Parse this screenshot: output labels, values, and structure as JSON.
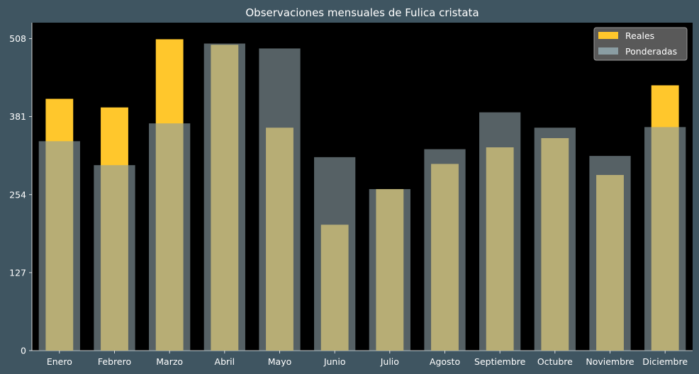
{
  "chart_data": {
    "type": "bar",
    "title": "Observaciones mensuales de Fulica cristata",
    "xlabel": "",
    "ylabel": "",
    "categories": [
      "Enero",
      "Febrero",
      "Marzo",
      "Abril",
      "Mayo",
      "Junio",
      "Julio",
      "Agosto",
      "Septiembre",
      "Octubre",
      "Noviembre",
      "Diciembre"
    ],
    "series": [
      {
        "name": "Reales",
        "color": "#ffc72c",
        "values": [
          410,
          396,
          507,
          498,
          363,
          205,
          263,
          304,
          331,
          346,
          286,
          432
        ]
      },
      {
        "name": "Ponderadas",
        "color": "#8a9da3",
        "values": [
          341,
          302,
          370,
          500,
          492,
          315,
          263,
          328,
          388,
          363,
          317,
          364
        ]
      }
    ],
    "ylim": [
      0,
      534
    ],
    "yticks": [
      0,
      127,
      254,
      381,
      508
    ],
    "grid": false,
    "legend_position": "top-right",
    "plot_background": "#000000",
    "figure_background": "#3f5561"
  }
}
